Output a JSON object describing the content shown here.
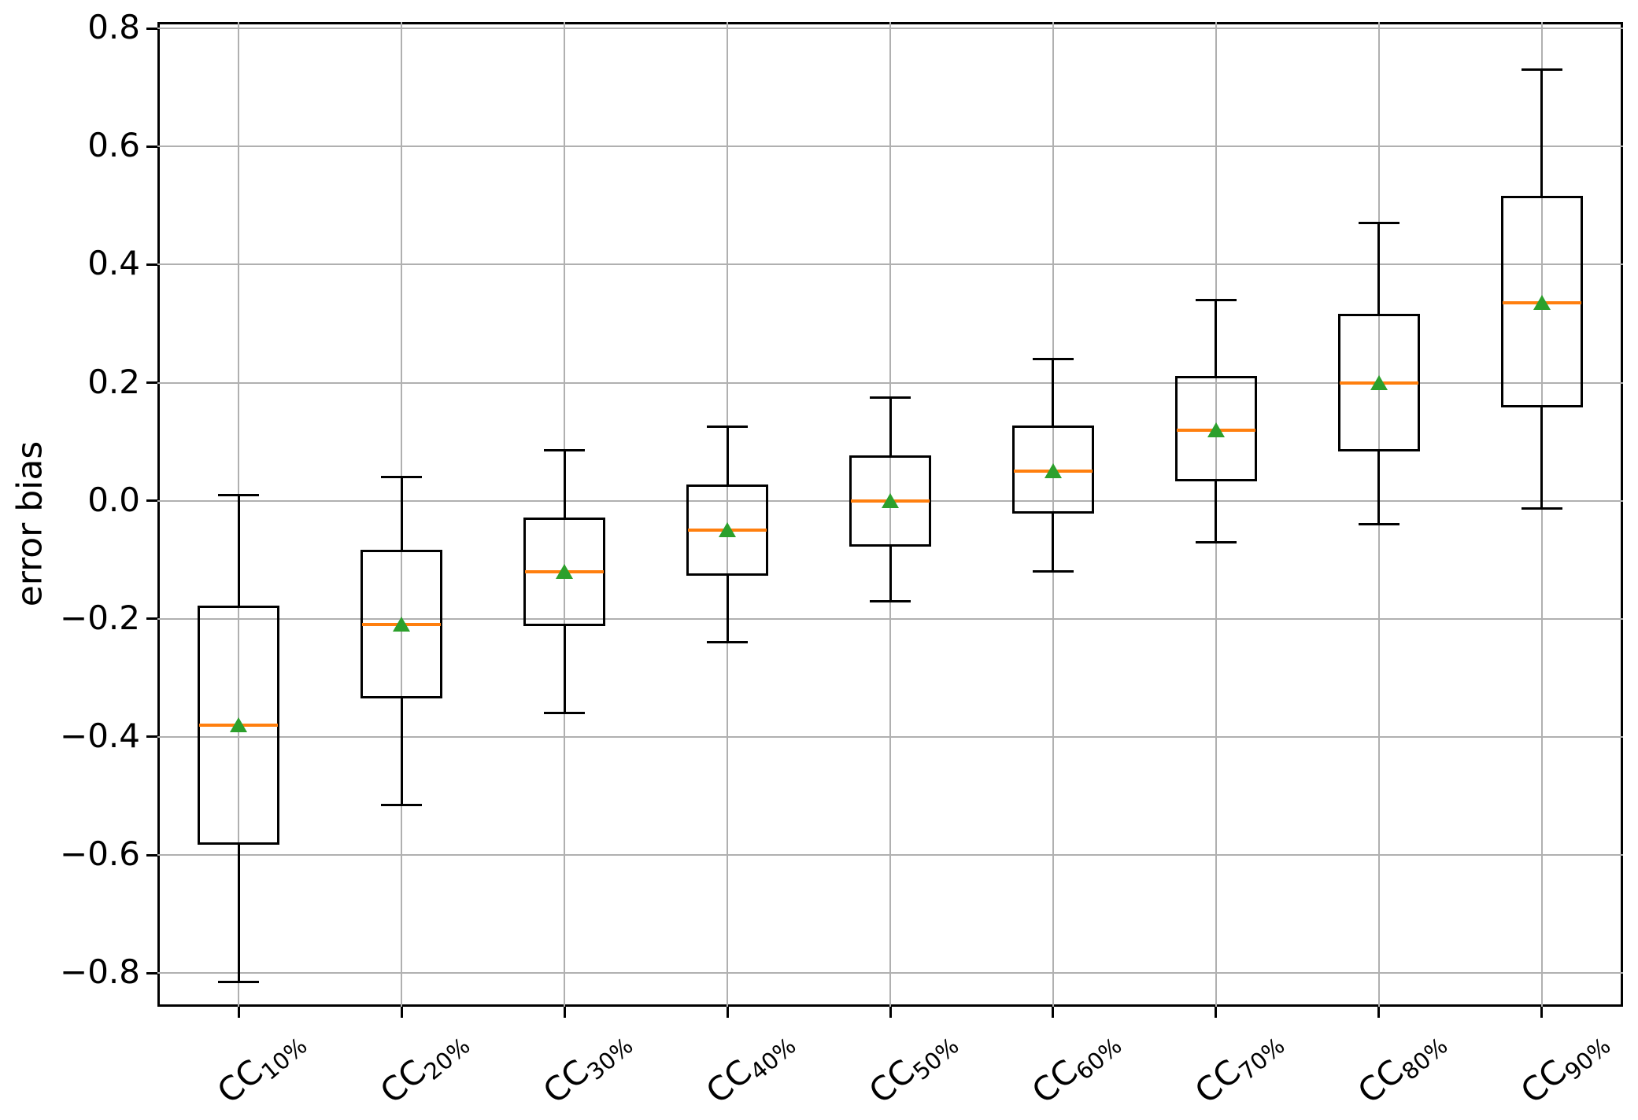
{
  "chart_data": {
    "type": "boxplot",
    "title": "",
    "xlabel": "",
    "ylabel": "error bias",
    "ylim": [
      -0.857,
      0.811
    ],
    "grid": true,
    "legend": null,
    "yticks": [
      {
        "value": 0.8,
        "label": "0.8"
      },
      {
        "value": 0.6,
        "label": "0.6"
      },
      {
        "value": 0.4,
        "label": "0.4"
      },
      {
        "value": 0.2,
        "label": "0.2"
      },
      {
        "value": 0.0,
        "label": "0.0"
      },
      {
        "value": -0.2,
        "label": "−0.2"
      },
      {
        "value": -0.4,
        "label": "−0.4"
      },
      {
        "value": -0.6,
        "label": "−0.6"
      },
      {
        "value": -0.8,
        "label": "−0.8"
      }
    ],
    "x_tick_rotation_deg": 40,
    "categories": [
      {
        "main": "CC",
        "sub": "10%"
      },
      {
        "main": "CC",
        "sub": "20%"
      },
      {
        "main": "CC",
        "sub": "30%"
      },
      {
        "main": "CC",
        "sub": "40%"
      },
      {
        "main": "CC",
        "sub": "50%"
      },
      {
        "main": "CC",
        "sub": "60%"
      },
      {
        "main": "CC",
        "sub": "70%"
      },
      {
        "main": "CC",
        "sub": "80%"
      },
      {
        "main": "CC",
        "sub": "90%"
      }
    ],
    "boxes": [
      {
        "category": "CC10%",
        "whislo": -0.815,
        "q1": -0.58,
        "med": -0.38,
        "q3": -0.18,
        "whishi": 0.01,
        "mean": -0.38
      },
      {
        "category": "CC20%",
        "whislo": -0.515,
        "q1": -0.333,
        "med": -0.21,
        "q3": -0.085,
        "whishi": 0.04,
        "mean": -0.21
      },
      {
        "category": "CC30%",
        "whislo": -0.36,
        "q1": -0.21,
        "med": -0.12,
        "q3": -0.03,
        "whishi": 0.085,
        "mean": -0.12
      },
      {
        "category": "CC40%",
        "whislo": -0.24,
        "q1": -0.125,
        "med": -0.05,
        "q3": 0.025,
        "whishi": 0.125,
        "mean": -0.05
      },
      {
        "category": "CC50%",
        "whislo": -0.17,
        "q1": -0.075,
        "med": 0.0,
        "q3": 0.075,
        "whishi": 0.175,
        "mean": 0.0
      },
      {
        "category": "CC60%",
        "whislo": -0.12,
        "q1": -0.02,
        "med": 0.05,
        "q3": 0.125,
        "whishi": 0.24,
        "mean": 0.05
      },
      {
        "category": "CC70%",
        "whislo": -0.07,
        "q1": 0.035,
        "med": 0.12,
        "q3": 0.21,
        "whishi": 0.34,
        "mean": 0.12
      },
      {
        "category": "CC80%",
        "whislo": -0.04,
        "q1": 0.085,
        "med": 0.2,
        "q3": 0.315,
        "whishi": 0.47,
        "mean": 0.2
      },
      {
        "category": "CC90%",
        "whislo": -0.013,
        "q1": 0.16,
        "med": 0.335,
        "q3": 0.515,
        "whishi": 0.73,
        "mean": 0.335
      }
    ],
    "colors": {
      "box": "#000000",
      "median": "#ff7f0e",
      "mean_marker": "#2ca02c",
      "grid": "#b0b0b0",
      "background": "#ffffff"
    },
    "mean_marker": "triangle-up"
  }
}
